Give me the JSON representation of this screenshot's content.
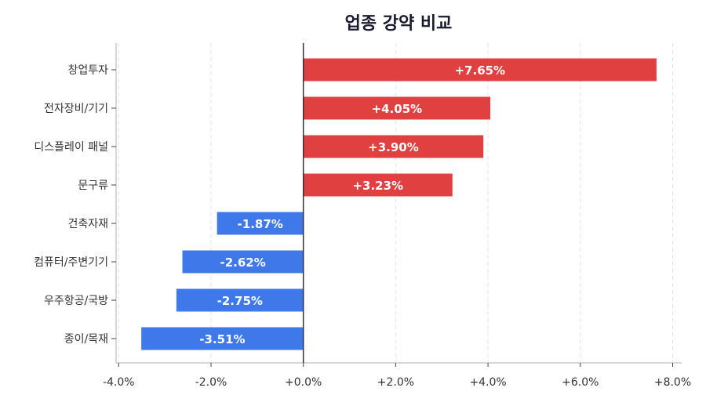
{
  "chart_data": {
    "type": "bar",
    "orientation": "horizontal",
    "title": "업종 강약 비교",
    "xlabel": "",
    "ylabel": "",
    "categories": [
      "창업투자",
      "전자장비/기기",
      "디스플레이 패널",
      "문구류",
      "건축자재",
      "컴퓨터/주변기기",
      "우주항공/국방",
      "종이/목재"
    ],
    "values": [
      7.65,
      4.05,
      3.9,
      3.23,
      -1.87,
      -2.62,
      -2.75,
      -3.51
    ],
    "data_labels": [
      "+7.65%",
      "+4.05%",
      "+3.90%",
      "+3.23%",
      "-1.87%",
      "-2.62%",
      "-2.75%",
      "-3.51%"
    ],
    "xlim": [
      -4.0,
      8.0
    ],
    "xticks": [
      -4,
      -2,
      0,
      2,
      4,
      6,
      8
    ],
    "xtick_labels": [
      "-4.0%",
      "-2.0%",
      "+0.0%",
      "+2.0%",
      "+4.0%",
      "+6.0%",
      "+8.0%"
    ],
    "grid": "vertical dashed",
    "colors": {
      "positive": "#e04040",
      "negative": "#3f78e8"
    }
  }
}
